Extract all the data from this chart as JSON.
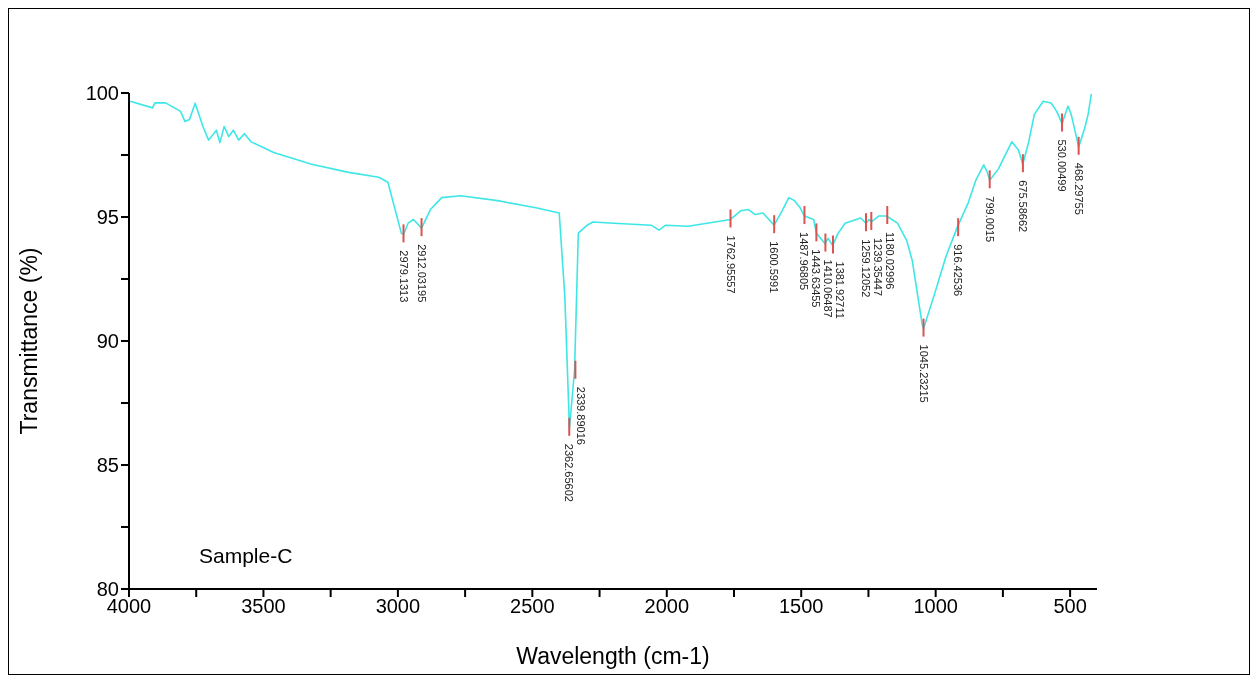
{
  "chart_data": {
    "type": "line",
    "xlabel": "Wavelength (cm-1)",
    "ylabel": "Transmittance (%)",
    "xlim": [
      4000,
      400
    ],
    "ylim": [
      80,
      100
    ],
    "xticks": [
      4000,
      {
        "value": 3750,
        "label": null
      },
      3500,
      {
        "value": 3250,
        "label": null
      },
      3000,
      {
        "value": 2750,
        "label": null
      },
      2500,
      {
        "value": 2250,
        "label": null
      },
      2000,
      {
        "value": 1750,
        "label": null
      },
      1500,
      {
        "value": 1250,
        "label": null
      },
      1000,
      {
        "value": 750,
        "label": null
      },
      500
    ],
    "yticks": [
      80,
      {
        "value": 82.5,
        "label": null
      },
      85,
      {
        "value": 87.5,
        "label": null
      },
      90,
      {
        "value": 92.5,
        "label": null
      },
      95,
      {
        "value": 97.5,
        "label": null
      },
      100
    ],
    "marker": "none",
    "line_style": "solid",
    "series": [
      {
        "color": "#3ee6e6",
        "x": [
          3996,
          3912,
          3904,
          3864,
          3808,
          3792,
          3775,
          3754,
          3725,
          3704,
          3675,
          3662,
          3646,
          3629,
          3612,
          3592,
          3571,
          3546,
          3462,
          3321,
          3183,
          3071,
          3037,
          3017,
          2987,
          2979,
          2962,
          2942,
          2912,
          2879,
          2837,
          2767,
          2629,
          2487,
          2400,
          2379,
          2362,
          2343,
          2329,
          2296,
          2275,
          2196,
          2058,
          2029,
          2004,
          1921,
          1850,
          1763,
          1725,
          1696,
          1671,
          1642,
          1601,
          1571,
          1546,
          1525,
          1504,
          1488,
          1454,
          1443,
          1412,
          1400,
          1383,
          1363,
          1337,
          1279,
          1259,
          1248,
          1239,
          1212,
          1183,
          1142,
          1108,
          1087,
          1050,
          1045,
          1004,
          962,
          921,
          879,
          850,
          821,
          808,
          799,
          767,
          717,
          692,
          676,
          654,
          633,
          600,
          571,
          550,
          530,
          508,
          496,
          468,
          446,
          433,
          421
        ],
        "values": [
          99.67,
          99.4,
          99.6,
          99.6,
          99.26,
          98.85,
          98.93,
          99.59,
          98.65,
          98.1,
          98.5,
          98.0,
          98.65,
          98.24,
          98.5,
          98.1,
          98.36,
          98.03,
          97.6,
          97.13,
          96.8,
          96.6,
          96.4,
          95.57,
          94.34,
          94.3,
          94.75,
          94.9,
          94.55,
          95.3,
          95.78,
          95.86,
          95.66,
          95.37,
          95.16,
          91.76,
          86.5,
          88.8,
          94.35,
          94.67,
          94.8,
          94.75,
          94.67,
          94.47,
          94.67,
          94.63,
          94.75,
          94.9,
          95.25,
          95.3,
          95.1,
          95.16,
          94.67,
          95.25,
          95.78,
          95.66,
          95.37,
          95.04,
          94.9,
          94.34,
          93.93,
          94.14,
          93.85,
          94.34,
          94.75,
          94.96,
          94.75,
          94.9,
          94.8,
          95.04,
          95.04,
          94.75,
          94.06,
          93.24,
          90.66,
          90.5,
          91.9,
          93.4,
          94.55,
          95.57,
          96.5,
          97.1,
          96.8,
          96.48,
          96.93,
          98.03,
          97.7,
          97.13,
          98.03,
          99.14,
          99.67,
          99.6,
          99.26,
          98.77,
          99.47,
          99.14,
          97.83,
          98.57,
          99.14,
          99.96
        ]
      }
    ],
    "annotations": [
      {
        "text": "2979.1313",
        "x": 2979.1313,
        "y": 94.3
      },
      {
        "text": "2912.03195",
        "x": 2912.03195,
        "y": 94.55
      },
      {
        "text": "2362.65602",
        "x": 2362.65602,
        "y": 86.5
      },
      {
        "text": "2339.89016",
        "x": 2339.89016,
        "y": 88.8
      },
      {
        "text": "1762.95557",
        "x": 1762.95557,
        "y": 94.9
      },
      {
        "text": "1600.5991",
        "x": 1600.5991,
        "y": 94.67
      },
      {
        "text": "1487.96805",
        "x": 1487.96805,
        "y": 95.04
      },
      {
        "text": "1443.63455",
        "x": 1443.63455,
        "y": 94.34
      },
      {
        "text": "1410.06487",
        "x": 1410.06487,
        "y": 93.93
      },
      {
        "text": "1381.92711",
        "x": 1381.92711,
        "y": 93.85
      },
      {
        "text": "1259.12052",
        "x": 1259.12052,
        "y": 94.75
      },
      {
        "text": "1239.35447",
        "x": 1239.35447,
        "y": 94.8
      },
      {
        "text": "1180.02996",
        "x": 1180.02996,
        "y": 95.04
      },
      {
        "text": "1045.23215",
        "x": 1045.23215,
        "y": 90.5
      },
      {
        "text": "916.42536",
        "x": 916.42536,
        "y": 94.55
      },
      {
        "text": "799.0015",
        "x": 799.0015,
        "y": 96.48
      },
      {
        "text": "675.58662",
        "x": 675.58662,
        "y": 97.13
      },
      {
        "text": "530.00499",
        "x": 530.00499,
        "y": 98.77
      },
      {
        "text": "468.29755",
        "x": 468.29755,
        "y": 97.83
      },
      "Sample-C"
    ]
  }
}
